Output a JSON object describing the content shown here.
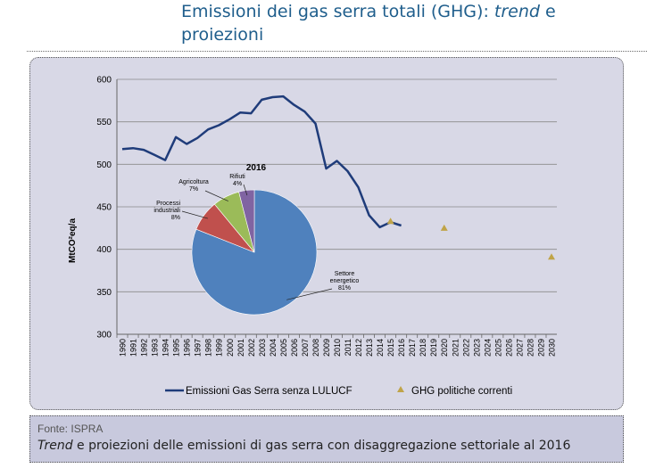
{
  "header": {
    "title_a": "Emissioni dei gas serra totali (GHG): ",
    "title_em": "trend",
    "title_b": " e proiezioni"
  },
  "footer": {
    "source": "Fonte: ISPRA",
    "caption_em": "Trend",
    "caption_rest": " e proiezioni delle emissioni di gas serra con disaggregazione settoriale al 2016"
  },
  "colors": {
    "line": "#1f3c7a",
    "projection": "#c0a448",
    "pie_energy": "#4f81bd",
    "pie_industry": "#c0504d",
    "pie_agri": "#9bbb59",
    "pie_waste": "#8064a2"
  },
  "chart_data": [
    {
      "type": "line",
      "title": "",
      "xlabel": "",
      "ylabel": "MtCO²eq/a",
      "ylim": [
        300,
        600
      ],
      "yticks": [
        "300",
        "350",
        "400",
        "450",
        "500",
        "550",
        "600"
      ],
      "categories": [
        "1990",
        "1991",
        "1992",
        "1993",
        "1994",
        "1995",
        "1996",
        "1997",
        "1998",
        "1999",
        "2000",
        "2001",
        "2002",
        "2003",
        "2004",
        "2005",
        "2006",
        "2007",
        "2008",
        "2009",
        "2010",
        "2011",
        "2012",
        "2013",
        "2014",
        "2015",
        "2016",
        "2017",
        "2018",
        "2019",
        "2020",
        "2021",
        "2022",
        "2023",
        "2024",
        "2025",
        "2026",
        "2027",
        "2028",
        "2029",
        "2030"
      ],
      "grid": true,
      "legend": "bottom",
      "series": [
        {
          "name": "Emissioni Gas Serra senza LULUCF",
          "style": "line",
          "x": [
            1990,
            1991,
            1992,
            1993,
            1994,
            1995,
            1996,
            1997,
            1998,
            1999,
            2000,
            2001,
            2002,
            2003,
            2004,
            2005,
            2006,
            2007,
            2008,
            2009,
            2010,
            2011,
            2012,
            2013,
            2014,
            2015,
            2016
          ],
          "values": [
            518,
            519,
            517,
            511,
            505,
            532,
            524,
            531,
            541,
            546,
            553,
            561,
            560,
            576,
            579,
            580,
            570,
            562,
            548,
            495,
            504,
            492,
            473,
            440,
            426,
            432,
            428
          ]
        },
        {
          "name": "GHG politiche correnti",
          "style": "marker",
          "x": [
            2015,
            2020,
            2030
          ],
          "values": [
            433,
            425,
            391
          ]
        }
      ]
    },
    {
      "type": "pie",
      "title": "2016",
      "slices": [
        {
          "label": "Settore energetico",
          "value": 81,
          "pct_label": "81%"
        },
        {
          "label": "Processi industriali",
          "value": 8,
          "pct_label": "8%"
        },
        {
          "label": "Agricoltura",
          "value": 7,
          "pct_label": "7%"
        },
        {
          "label": "Rifiuti",
          "value": 4,
          "pct_label": "4%"
        }
      ]
    }
  ]
}
